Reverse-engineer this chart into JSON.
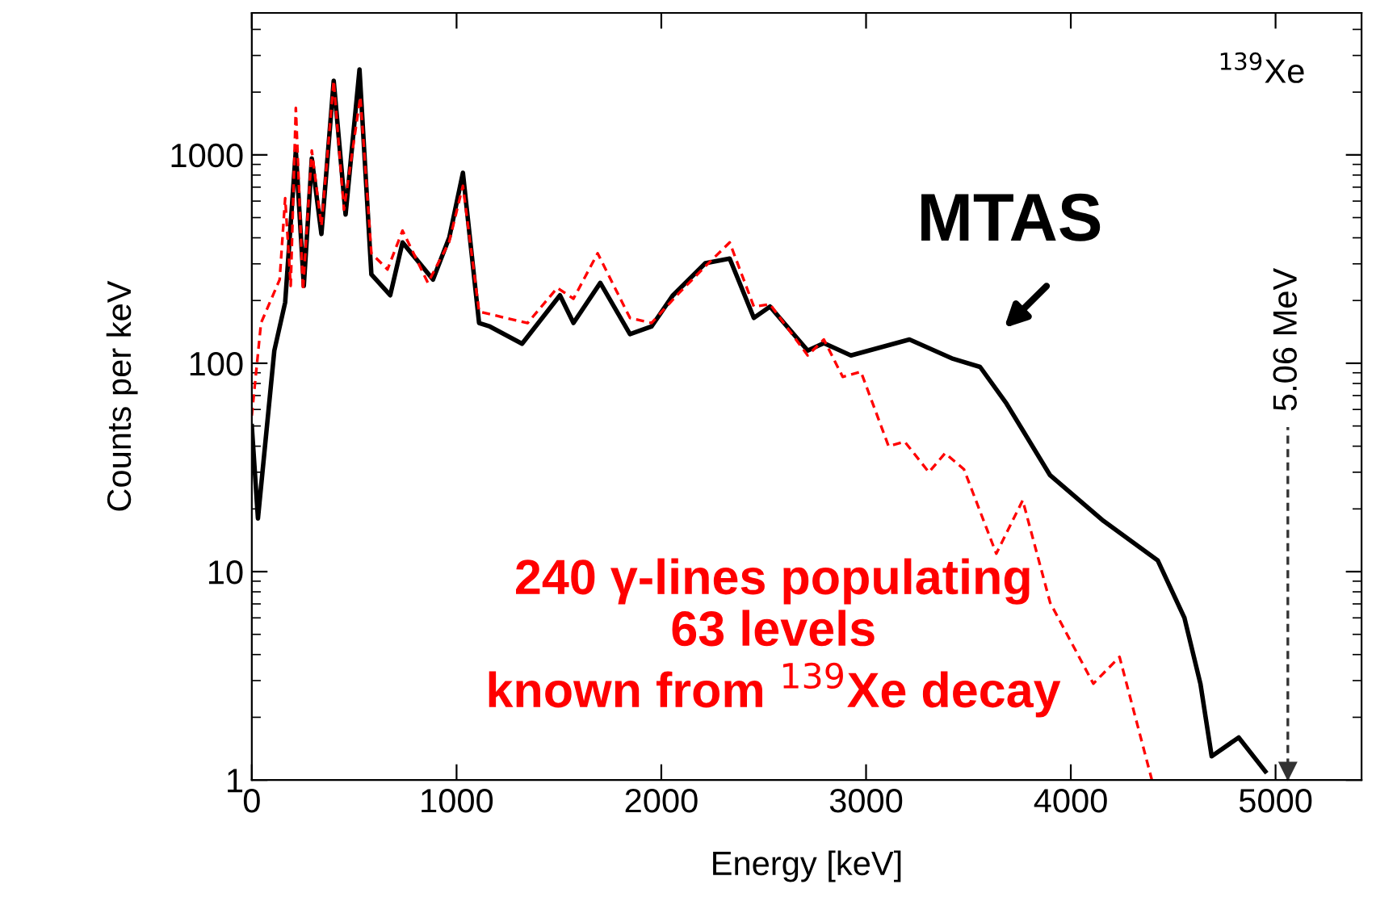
{
  "chart_data": {
    "type": "line",
    "xlabel": "Energy [keV]",
    "ylabel": "Counts per keV",
    "log": "y",
    "grid": false,
    "legend": false,
    "marker": "none",
    "xlim": [
      0,
      5420
    ],
    "xticks": [
      0,
      1000,
      2000,
      3000,
      4000,
      5000
    ],
    "ylim": [
      1,
      4800
    ],
    "yticks": [
      1,
      10,
      100,
      1000
    ],
    "series": [
      {
        "color": "#000000",
        "line_style": "solid",
        "x": [
          0,
          30,
          110,
          163,
          215,
          254,
          293,
          340,
          400,
          458,
          526,
          584,
          676,
          736,
          885,
          965,
          1031,
          1110,
          1163,
          1320,
          1505,
          1571,
          1702,
          1847,
          1952,
          2057,
          2215,
          2334,
          2452,
          2531,
          2715,
          2794,
          2926,
          3212,
          3425,
          3557,
          3686,
          3899,
          4160,
          4425,
          4555,
          4633,
          4688,
          4820,
          4950
        ],
        "values": [
          50,
          18,
          115,
          196,
          1050,
          235,
          960,
          417,
          2270,
          517,
          2570,
          267,
          212,
          380,
          252,
          403,
          820,
          156,
          150,
          124,
          212,
          156,
          243,
          138,
          150,
          212,
          302,
          318,
          165,
          187,
          115,
          125,
          109,
          130,
          105,
          96,
          64,
          29,
          17.5,
          11.3,
          6,
          2.9,
          1.3,
          1.6,
          1.1
        ]
      },
      {
        "color": "#ff0000",
        "line_style": "dashed",
        "x": [
          0,
          45,
          136,
          163,
          190,
          215,
          250,
          293,
          340,
          400,
          450,
          530,
          584,
          663,
          736,
          860,
          963,
          1031,
          1110,
          1240,
          1347,
          1492,
          1571,
          1689,
          1847,
          1952,
          2084,
          2215,
          2334,
          2452,
          2531,
          2715,
          2794,
          2886,
          2975,
          3110,
          3189,
          3307,
          3386,
          3478,
          3636,
          3765,
          3899,
          4110,
          4238,
          4396
        ],
        "values": [
          56,
          156,
          252,
          620,
          235,
          1680,
          224,
          1050,
          455,
          2270,
          546,
          1900,
          337,
          282,
          433,
          243,
          380,
          710,
          177,
          165,
          156,
          230,
          204,
          337,
          165,
          156,
          216,
          292,
          380,
          187,
          192,
          109,
          130,
          86,
          91,
          40,
          42,
          30,
          37,
          31,
          12.2,
          22,
          7.1,
          2.9,
          3.9,
          1
        ]
      }
    ],
    "ref_lines": [
      {
        "axis": "x",
        "value": 5060,
        "label": "5.06 MeV",
        "line_style": "dashed"
      }
    ],
    "annotations": [
      "MTAS",
      "$^{139}$Xe",
      "240 γ-lines populating\n63 levels\nknown from $^{139}$Xe decay"
    ]
  }
}
